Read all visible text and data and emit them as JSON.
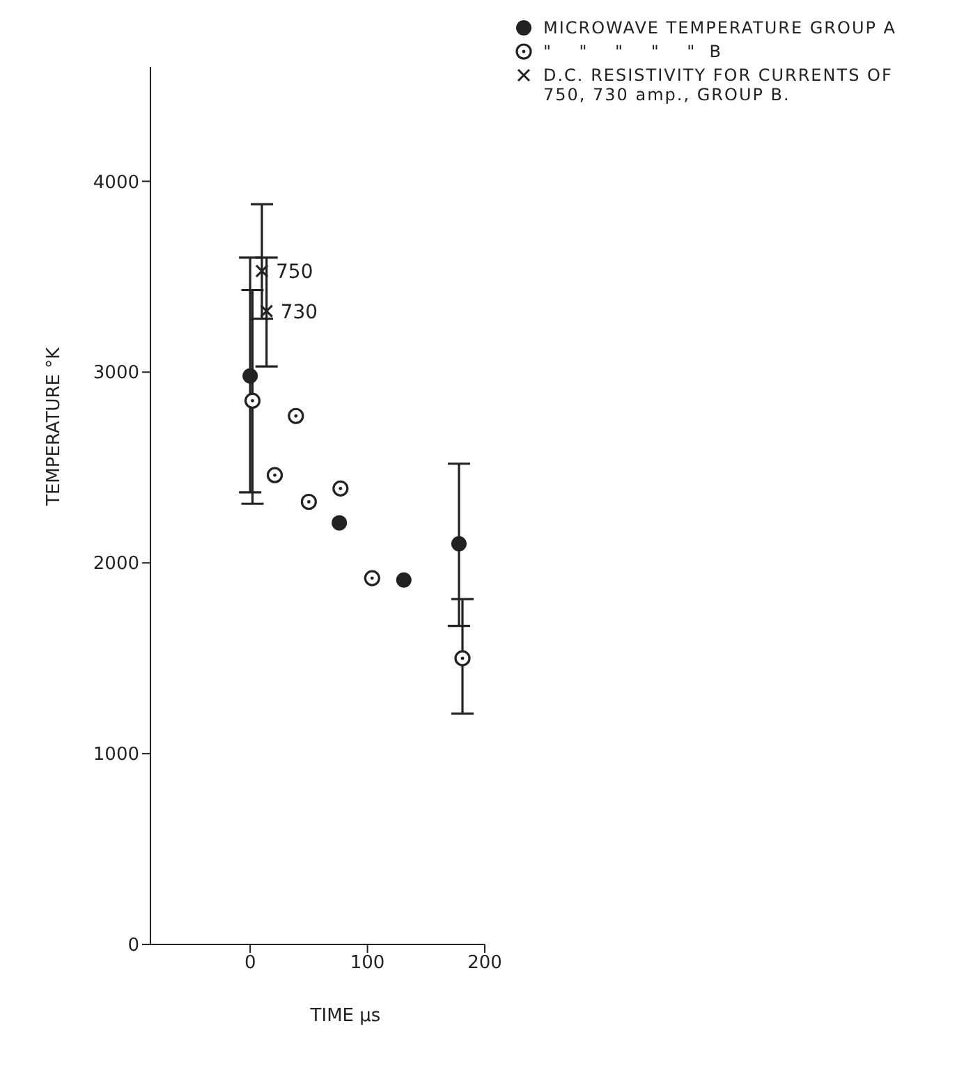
{
  "chart_data": {
    "type": "scatter",
    "xlabel": "TIME μs",
    "ylabel": "TEMPERATURE °K",
    "xlim": [
      -85,
      200
    ],
    "xticks": [
      0,
      100,
      200
    ],
    "ylim": [
      0,
      4600
    ],
    "yticks": [
      0,
      1000,
      2000,
      3000,
      4000
    ],
    "grid": false,
    "legend": "top right",
    "series": [
      {
        "name": "MICROWAVE TEMPERATURE GROUP A",
        "color": "#222222",
        "marker": "circle",
        "x": [
          0,
          76,
          131,
          178
        ],
        "values": [
          2980,
          2210,
          1910,
          2100
        ],
        "errors": [
          [
            2370,
            3600
          ],
          null,
          null,
          [
            1670,
            2520
          ]
        ]
      },
      {
        "name": "\"    \"    \"    \"    \"  B",
        "color": "#222222",
        "marker": "circle-dot",
        "x": [
          2,
          21,
          39,
          50,
          77,
          104,
          181
        ],
        "values": [
          2850,
          2460,
          2770,
          2320,
          2390,
          1920,
          1500
        ],
        "errors": [
          [
            2310,
            3430
          ],
          null,
          null,
          null,
          null,
          null,
          [
            1210,
            1810
          ]
        ]
      },
      {
        "name": "D.C. RESISTIVITY FOR CURRENTS OF 750, 730 amp., GROUP B.",
        "color": "#222222",
        "marker": "cross",
        "x": [
          10,
          14
        ],
        "values": [
          3530,
          3320
        ],
        "errors": [
          [
            3280,
            3880
          ],
          [
            3030,
            3600
          ]
        ]
      }
    ],
    "annotations": [
      {
        "text": "750",
        "x": 10,
        "y": 3530
      },
      {
        "text": "730",
        "x": 14,
        "y": 3320
      }
    ]
  }
}
